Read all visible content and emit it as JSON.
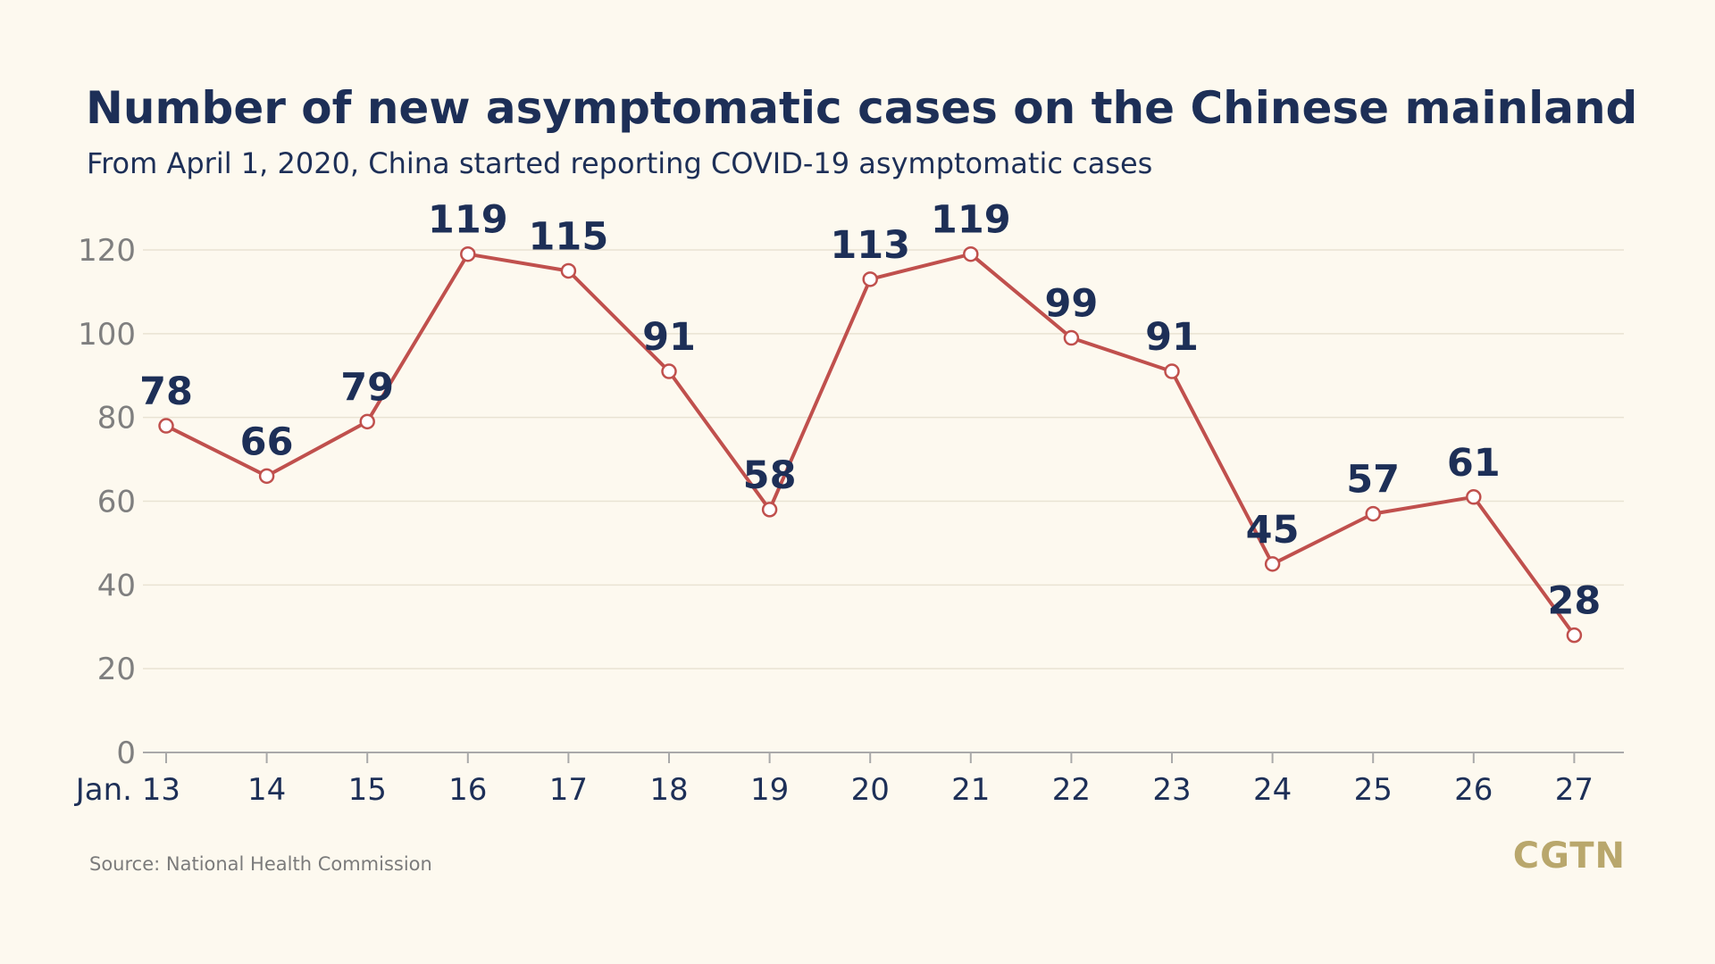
{
  "title": "Number of new asymptomatic cases on the Chinese mainland",
  "subtitle": "From April 1, 2020, China started reporting COVID-19 asymptomatic cases",
  "source": "Source: National Health Commission",
  "logo": "CGTN",
  "colors": {
    "background": "#fdf9ef",
    "text": "#1d2f57",
    "line": "#c0504d",
    "axis_text": "#7f7f7f",
    "logo": "#b9a76c"
  },
  "chart_data": {
    "type": "line",
    "x": [
      "Jan. 13",
      "14",
      "15",
      "16",
      "17",
      "18",
      "19",
      "20",
      "21",
      "22",
      "23",
      "24",
      "25",
      "26",
      "27"
    ],
    "series": [
      {
        "values": [
          78,
          66,
          79,
          119,
          115,
          91,
          58,
          113,
          119,
          99,
          91,
          45,
          57,
          61,
          28
        ]
      }
    ],
    "data_labels": [
      "78",
      "66",
      "79",
      "119",
      "115",
      "91",
      "58",
      "113",
      "119",
      "99",
      "91",
      "45",
      "57",
      "61",
      "28"
    ],
    "yticks": [
      "0",
      "20",
      "40",
      "60",
      "80",
      "100",
      "120"
    ],
    "ylim": [
      0,
      120
    ],
    "grid": true,
    "legend": "none"
  }
}
